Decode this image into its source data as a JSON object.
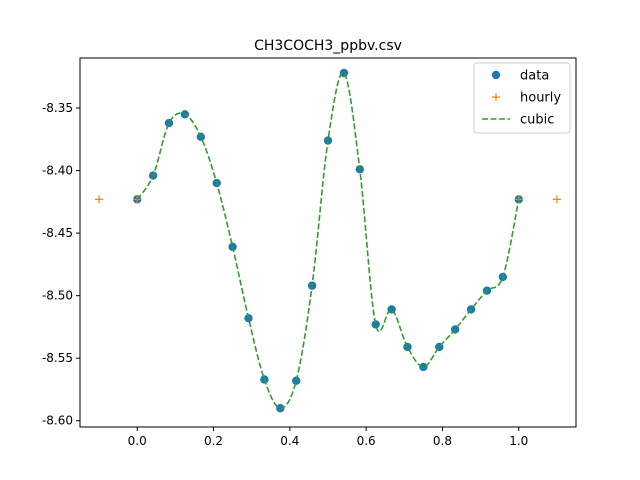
{
  "chart_data": {
    "type": "line",
    "title": "CH3COCH3_ppbv.csv",
    "xlabel": "",
    "ylabel": "",
    "xlim": [
      -0.15,
      1.15
    ],
    "ylim": [
      -8.605,
      -8.31
    ],
    "xticks": [
      0.0,
      0.2,
      0.4,
      0.6,
      0.8,
      1.0
    ],
    "xtick_labels": [
      "0.0",
      "0.2",
      "0.4",
      "0.6",
      "0.8",
      "1.0"
    ],
    "yticks": [
      -8.6,
      -8.55,
      -8.5,
      -8.45,
      -8.4,
      -8.35
    ],
    "ytick_labels": [
      "-8.60",
      "-8.55",
      "-8.50",
      "-8.45",
      "-8.40",
      "-8.35"
    ],
    "grid": false,
    "legend_position": "top-right",
    "series": [
      {
        "name": "data",
        "style": "markers",
        "marker": "circle",
        "color": "#1f77b4",
        "x": [
          0.0,
          0.0417,
          0.0833,
          0.125,
          0.1667,
          0.2083,
          0.25,
          0.2917,
          0.3333,
          0.375,
          0.4167,
          0.4583,
          0.5,
          0.5417,
          0.5833,
          0.625,
          0.6667,
          0.7083,
          0.75,
          0.7917,
          0.8333,
          0.875,
          0.9167,
          0.9583,
          1.0
        ],
        "y": [
          -8.423,
          -8.404,
          -8.362,
          -8.355,
          -8.373,
          -8.41,
          -8.461,
          -8.518,
          -8.567,
          -8.59,
          -8.568,
          -8.492,
          -8.376,
          -8.322,
          -8.399,
          -8.523,
          -8.511,
          -8.541,
          -8.557,
          -8.541,
          -8.527,
          -8.511,
          -8.496,
          -8.485,
          -8.423
        ]
      },
      {
        "name": "hourly",
        "style": "markers",
        "marker": "plus",
        "color": "#ff7f0e",
        "x": [
          -0.1,
          0.0,
          1.0,
          1.1
        ],
        "y": [
          -8.423,
          -8.423,
          -8.423,
          -8.423
        ]
      },
      {
        "name": "cubic",
        "style": "dashed-line",
        "color": "#2ca02c",
        "x": [
          0.0,
          0.0417,
          0.0833,
          0.125,
          0.1667,
          0.2083,
          0.25,
          0.2917,
          0.3333,
          0.375,
          0.4167,
          0.4583,
          0.5,
          0.5417,
          0.5833,
          0.625,
          0.6667,
          0.7083,
          0.75,
          0.7917,
          0.8333,
          0.875,
          0.9167,
          0.9583,
          1.0
        ],
        "y": [
          -8.423,
          -8.404,
          -8.362,
          -8.355,
          -8.373,
          -8.41,
          -8.461,
          -8.518,
          -8.567,
          -8.59,
          -8.568,
          -8.492,
          -8.376,
          -8.322,
          -8.399,
          -8.523,
          -8.511,
          -8.541,
          -8.557,
          -8.541,
          -8.527,
          -8.511,
          -8.496,
          -8.485,
          -8.423
        ]
      }
    ]
  }
}
